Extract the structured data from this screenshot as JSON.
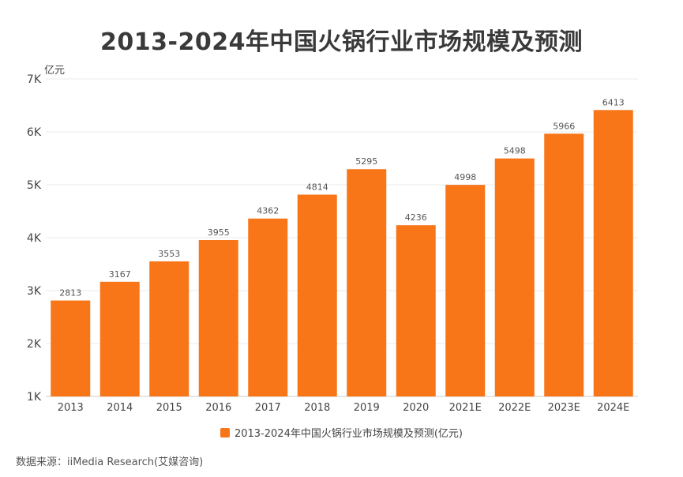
{
  "colors": {
    "bar": "#F87518",
    "grid": "#EBEBEB",
    "axis_text": "#444444",
    "label_text": "#555555"
  },
  "chart_data": {
    "type": "bar",
    "title": "2013-2024年中国火锅行业市场规模及预测",
    "ylabel": "亿元",
    "xlabel": "",
    "categories": [
      "2013",
      "2014",
      "2015",
      "2016",
      "2017",
      "2018",
      "2019",
      "2020",
      "2021E",
      "2022E",
      "2023E",
      "2024E"
    ],
    "series": [
      {
        "name": "2013-2024年中国火锅行业市场规模及预测(亿元)",
        "values": [
          2813,
          3167,
          3553,
          3955,
          4362,
          4814,
          5295,
          4236,
          4998,
          5498,
          5966,
          6413
        ]
      }
    ],
    "ylim": [
      1000,
      7000
    ],
    "yticks": [
      1000,
      2000,
      3000,
      4000,
      5000,
      6000,
      7000
    ],
    "ytick_labels": [
      "1K",
      "2K",
      "3K",
      "4K",
      "5K",
      "6K",
      "7K"
    ],
    "grid": true,
    "legend_position": "bottom-center",
    "data_labels": true
  },
  "legend": {
    "label": "2013-2024年中国火锅行业市场规模及预测(亿元)"
  },
  "source": "数据来源：iiMedia Research(艾媒咨询)"
}
